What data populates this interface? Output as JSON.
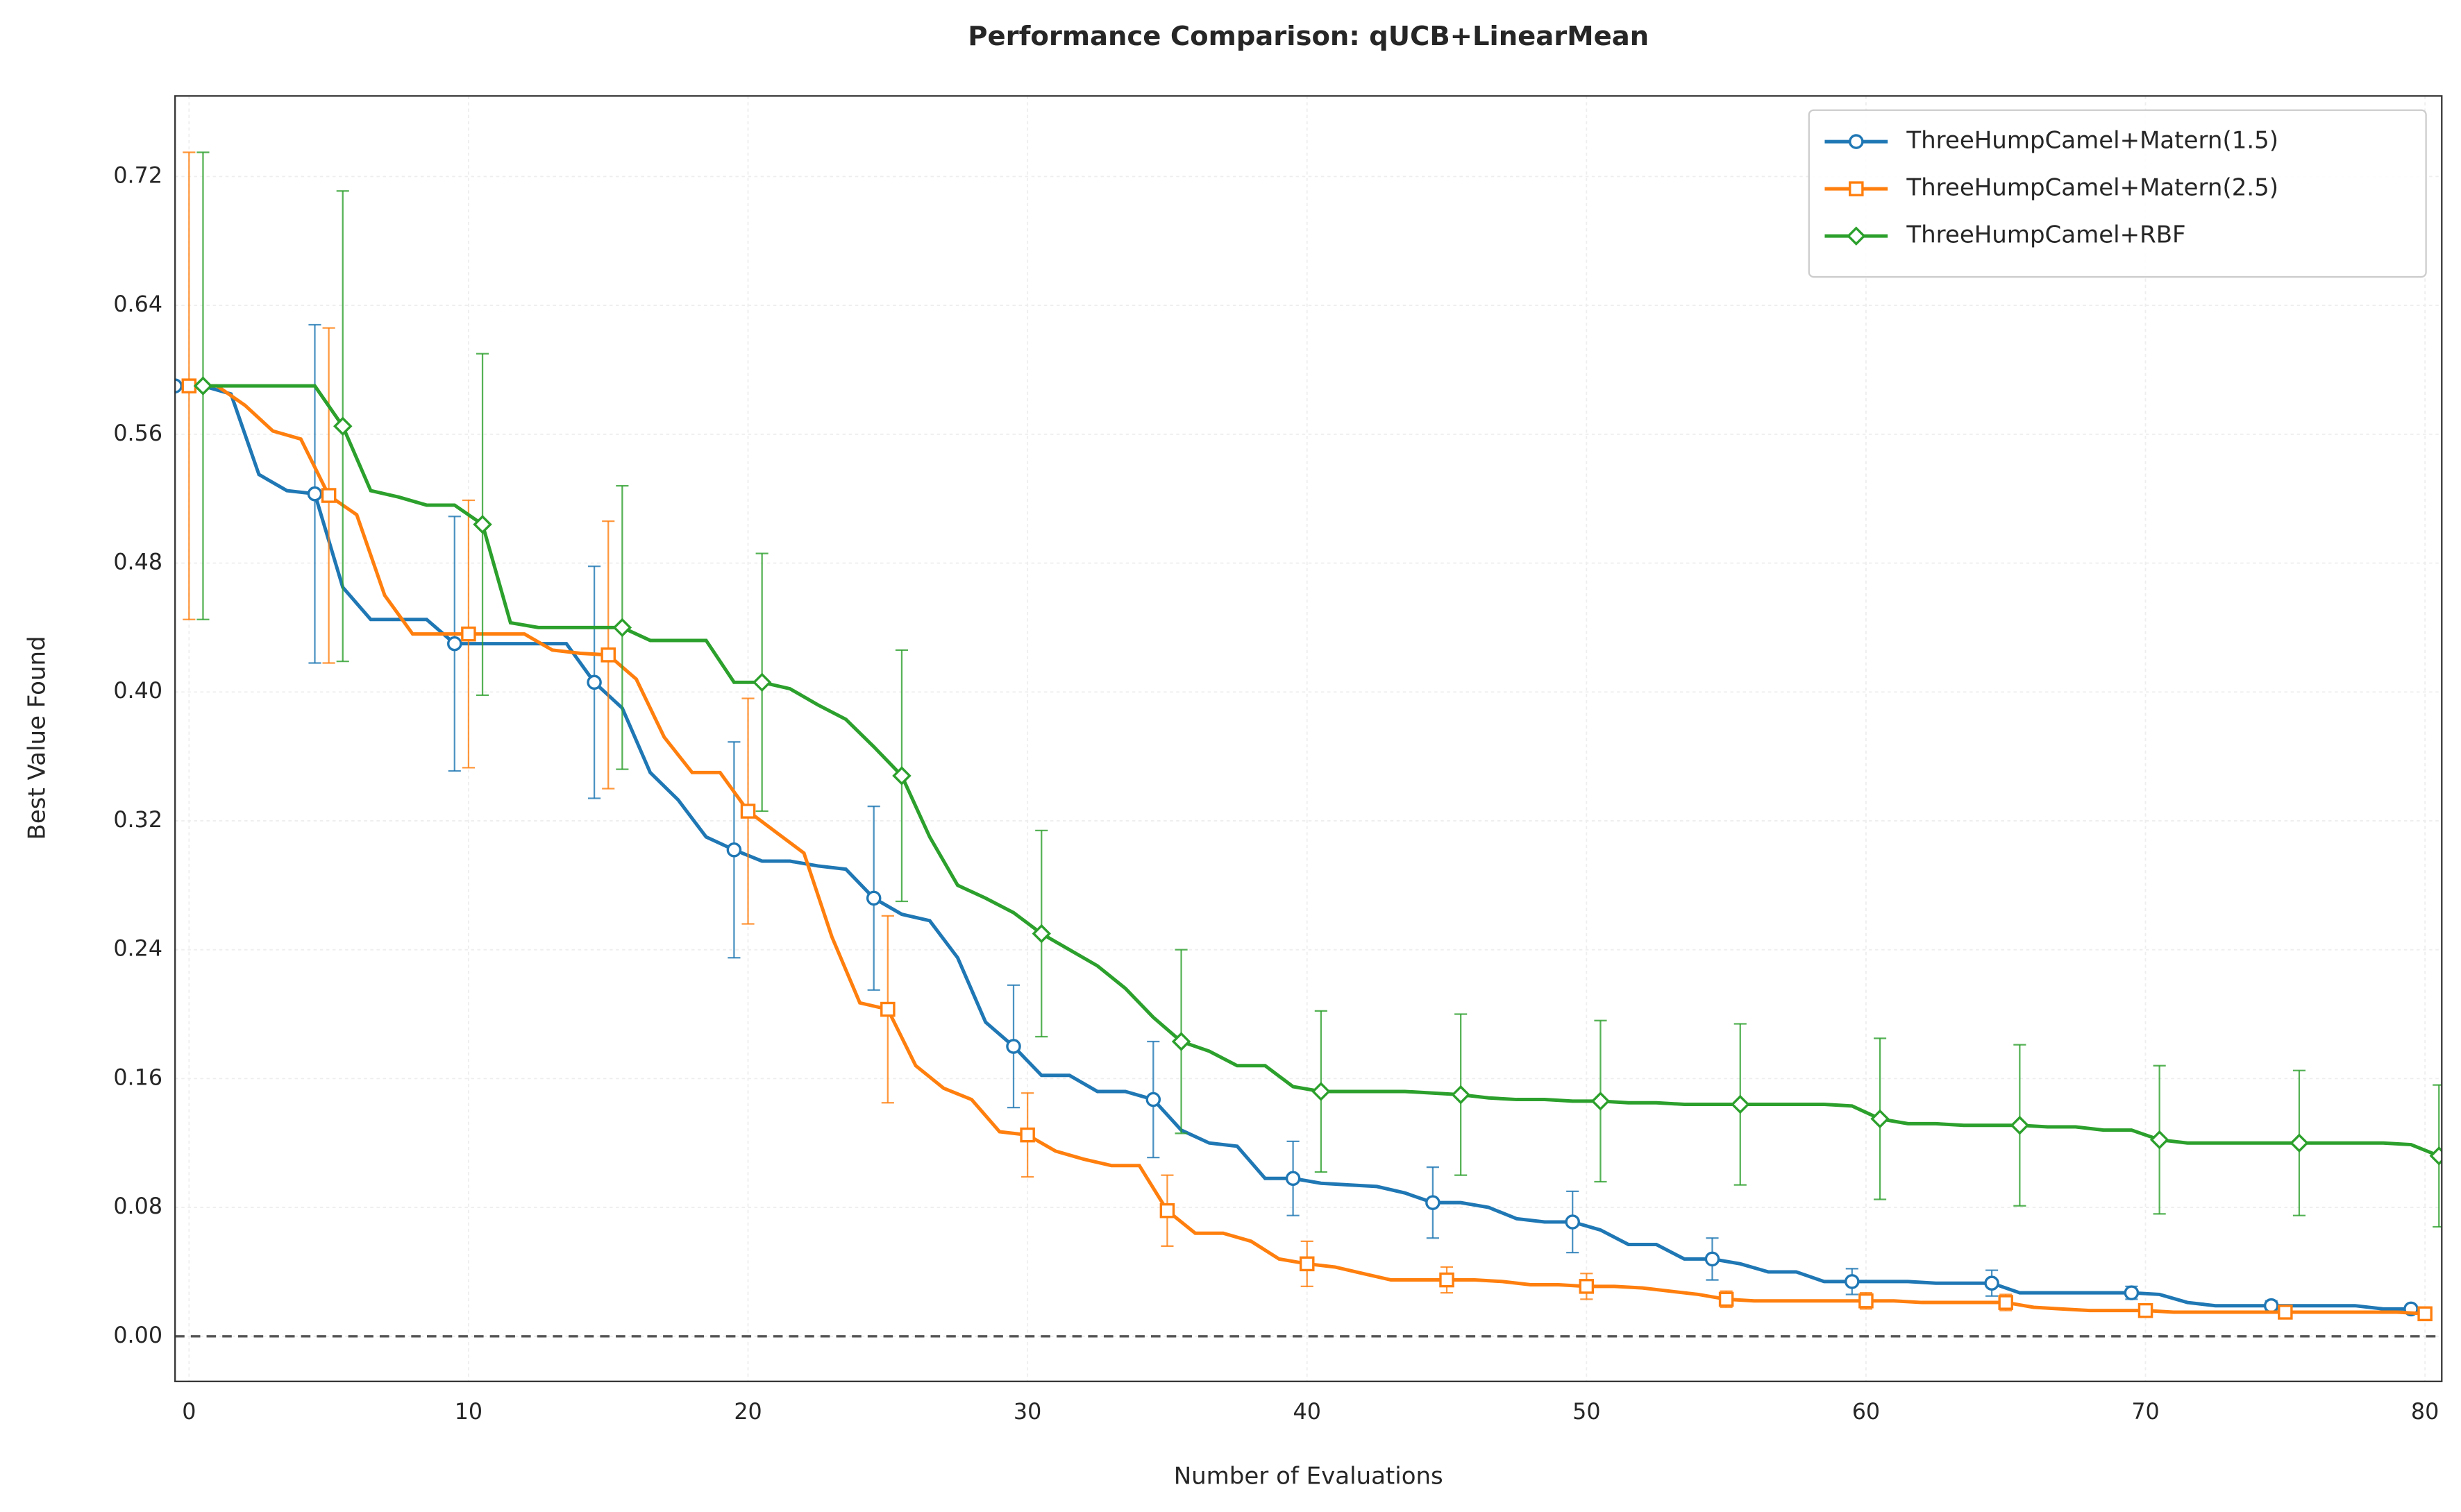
{
  "chart_data": {
    "type": "line",
    "title": "Performance Comparison: qUCB+LinearMean",
    "x_label": "Number of Evaluations",
    "y_label": "Best Value Found",
    "xlim": [
      -0.5,
      80.6
    ],
    "ylim": [
      -0.028,
      0.77
    ],
    "xticks": [
      0,
      10,
      20,
      30,
      40,
      50,
      60,
      70,
      80
    ],
    "yticks": [
      {
        "value": 0,
        "label": "0.00"
      },
      0.08,
      0.16,
      0.24,
      0.32,
      {
        "value": 0.4,
        "label": "0.40"
      },
      0.48,
      0.56,
      0.64,
      0.72
    ],
    "grid": true,
    "legend": "upper right",
    "reference_line": 0,
    "markevery": 5,
    "series": [
      {
        "name": "ThreeHumpCamel+Matern(1.5)",
        "color": "#1f77b4",
        "marker": "circle",
        "x": [
          -0.5,
          0.5,
          1.5,
          2.5,
          3.5,
          4.5,
          5.5,
          6.5,
          7.5,
          8.5,
          9.5,
          10.5,
          11.5,
          12.5,
          13.5,
          14.5,
          15.5,
          16.5,
          17.5,
          18.5,
          19.5,
          20.5,
          21.5,
          22.5,
          23.5,
          24.5,
          25.5,
          26.5,
          27.5,
          28.5,
          29.5,
          30.5,
          31.5,
          32.5,
          33.5,
          34.5,
          35.5,
          36.5,
          37.5,
          38.5,
          39.5,
          40.5,
          41.5,
          42.5,
          43.5,
          44.5,
          45.5,
          46.5,
          47.5,
          48.5,
          49.5,
          50.5,
          51.5,
          52.5,
          53.5,
          54.5,
          55.5,
          56.5,
          57.5,
          58.5,
          59.5,
          60.5,
          61.5,
          62.5,
          63.5,
          64.5,
          65.5,
          66.5,
          67.5,
          68.5,
          69.5,
          70.5,
          71.5,
          72.5,
          73.5,
          74.5,
          75.5,
          76.5,
          77.5,
          78.5,
          79.5
        ],
        "values": [
          0.59,
          0.59,
          0.585,
          0.535,
          0.525,
          0.523,
          0.465,
          0.445,
          0.445,
          0.445,
          0.43,
          0.43,
          0.43,
          0.43,
          0.43,
          0.406,
          0.39,
          0.35,
          0.333,
          0.31,
          0.302,
          0.295,
          0.295,
          0.292,
          0.29,
          0.272,
          0.262,
          0.258,
          0.235,
          0.195,
          0.18,
          0.162,
          0.162,
          0.152,
          0.152,
          0.147,
          0.128,
          0.12,
          0.118,
          0.098,
          0.098,
          0.095,
          0.094,
          0.093,
          0.089,
          0.083,
          0.083,
          0.08,
          0.073,
          0.071,
          0.071,
          0.066,
          0.057,
          0.057,
          0.048,
          0.048,
          0.045,
          0.04,
          0.04,
          0.034,
          0.034,
          0.034,
          0.034,
          0.033,
          0.033,
          0.033,
          0.027,
          0.027,
          0.027,
          0.027,
          0.027,
          0.026,
          0.021,
          0.019,
          0.019,
          0.019,
          0.019,
          0.019,
          0.019,
          0.017,
          0.017
        ],
        "errors": [
          0,
          null,
          null,
          null,
          null,
          0.105,
          null,
          null,
          null,
          null,
          0.079,
          null,
          null,
          null,
          null,
          0.072,
          null,
          null,
          null,
          null,
          0.067,
          null,
          null,
          null,
          null,
          0.057,
          null,
          null,
          null,
          null,
          0.038,
          null,
          null,
          null,
          null,
          0.036,
          null,
          null,
          null,
          null,
          0.023,
          null,
          null,
          null,
          null,
          0.022,
          null,
          null,
          null,
          null,
          0.019,
          null,
          null,
          null,
          null,
          0.013,
          null,
          null,
          null,
          null,
          0.008,
          null,
          null,
          null,
          null,
          0.008,
          null,
          null,
          null,
          null,
          0.004,
          null,
          null,
          null,
          null,
          0.003,
          null,
          null,
          null,
          null,
          0.002
        ]
      },
      {
        "name": "ThreeHumpCamel+Matern(2.5)",
        "color": "#ff7f0e",
        "marker": "square",
        "x": [
          0,
          1,
          2,
          3,
          4,
          5,
          6,
          7,
          8,
          9,
          10,
          11,
          12,
          13,
          14,
          15,
          16,
          17,
          18,
          19,
          20,
          21,
          22,
          23,
          24,
          25,
          26,
          27,
          28,
          29,
          30,
          31,
          32,
          33,
          34,
          35,
          36,
          37,
          38,
          39,
          40,
          41,
          42,
          43,
          44,
          45,
          46,
          47,
          48,
          49,
          50,
          51,
          52,
          53,
          54,
          55,
          56,
          57,
          58,
          59,
          60,
          61,
          62,
          63,
          64,
          65,
          66,
          67,
          68,
          69,
          70,
          71,
          72,
          73,
          74,
          75,
          76,
          77,
          78,
          79,
          80
        ],
        "values": [
          0.59,
          0.59,
          0.578,
          0.562,
          0.557,
          0.522,
          0.51,
          0.46,
          0.436,
          0.436,
          0.436,
          0.436,
          0.436,
          0.426,
          0.424,
          0.423,
          0.408,
          0.372,
          0.35,
          0.35,
          0.326,
          0.313,
          0.3,
          0.248,
          0.207,
          0.203,
          0.168,
          0.154,
          0.147,
          0.127,
          0.125,
          0.115,
          0.11,
          0.106,
          0.106,
          0.078,
          0.064,
          0.064,
          0.059,
          0.048,
          0.045,
          0.043,
          0.039,
          0.035,
          0.035,
          0.035,
          0.035,
          0.034,
          0.032,
          0.032,
          0.031,
          0.031,
          0.03,
          0.028,
          0.026,
          0.023,
          0.022,
          0.022,
          0.022,
          0.022,
          0.022,
          0.022,
          0.021,
          0.021,
          0.021,
          0.021,
          0.018,
          0.017,
          0.016,
          0.016,
          0.016,
          0.015,
          0.015,
          0.015,
          0.015,
          0.015,
          0.015,
          0.015,
          0.015,
          0.015,
          0.014
        ],
        "errors": [
          0.145,
          null,
          null,
          null,
          null,
          0.104,
          null,
          null,
          null,
          null,
          0.083,
          null,
          null,
          null,
          null,
          0.083,
          null,
          null,
          null,
          null,
          0.07,
          null,
          null,
          null,
          null,
          0.058,
          null,
          null,
          null,
          null,
          0.026,
          null,
          null,
          null,
          null,
          0.022,
          null,
          null,
          null,
          null,
          0.014,
          null,
          null,
          null,
          null,
          0.008,
          null,
          null,
          null,
          null,
          0.008,
          null,
          null,
          null,
          null,
          0.005,
          null,
          null,
          null,
          null,
          0.005,
          null,
          null,
          null,
          null,
          0.005,
          null,
          null,
          null,
          null,
          0.003,
          null,
          null,
          null,
          null,
          0.003,
          null,
          null,
          null,
          null,
          0.002
        ]
      },
      {
        "name": "ThreeHumpCamel+RBF",
        "color": "#2ca02c",
        "marker": "diamond",
        "x": [
          0.5,
          1.5,
          2.5,
          3.5,
          4.5,
          5.5,
          6.5,
          7.5,
          8.5,
          9.5,
          10.5,
          11.5,
          12.5,
          13.5,
          14.5,
          15.5,
          16.5,
          17.5,
          18.5,
          19.5,
          20.5,
          21.5,
          22.5,
          23.5,
          24.5,
          25.5,
          26.5,
          27.5,
          28.5,
          29.5,
          30.5,
          31.5,
          32.5,
          33.5,
          34.5,
          35.5,
          36.5,
          37.5,
          38.5,
          39.5,
          40.5,
          41.5,
          42.5,
          43.5,
          44.5,
          45.5,
          46.5,
          47.5,
          48.5,
          49.5,
          50.5,
          51.5,
          52.5,
          53.5,
          54.5,
          55.5,
          56.5,
          57.5,
          58.5,
          59.5,
          60.5,
          61.5,
          62.5,
          63.5,
          64.5,
          65.5,
          66.5,
          67.5,
          68.5,
          69.5,
          70.5,
          71.5,
          72.5,
          73.5,
          74.5,
          75.5,
          76.5,
          77.5,
          78.5,
          79.5,
          80.5
        ],
        "values": [
          0.59,
          0.59,
          0.59,
          0.59,
          0.59,
          0.565,
          0.525,
          0.521,
          0.516,
          0.516,
          0.504,
          0.443,
          0.44,
          0.44,
          0.44,
          0.44,
          0.432,
          0.432,
          0.432,
          0.406,
          0.406,
          0.402,
          0.392,
          0.383,
          0.366,
          0.348,
          0.31,
          0.28,
          0.272,
          0.263,
          0.25,
          0.24,
          0.23,
          0.216,
          0.198,
          0.183,
          0.177,
          0.168,
          0.168,
          0.155,
          0.152,
          0.152,
          0.152,
          0.152,
          0.151,
          0.15,
          0.148,
          0.147,
          0.147,
          0.146,
          0.146,
          0.145,
          0.145,
          0.144,
          0.144,
          0.144,
          0.144,
          0.144,
          0.144,
          0.143,
          0.135,
          0.132,
          0.132,
          0.131,
          0.131,
          0.131,
          0.13,
          0.13,
          0.128,
          0.128,
          0.122,
          0.12,
          0.12,
          0.12,
          0.12,
          0.12,
          0.12,
          0.12,
          0.12,
          0.119,
          0.112
        ],
        "errors": [
          0.145,
          null,
          null,
          null,
          null,
          0.146,
          null,
          null,
          null,
          null,
          0.106,
          null,
          null,
          null,
          null,
          0.088,
          null,
          null,
          null,
          null,
          0.08,
          null,
          null,
          null,
          null,
          0.078,
          null,
          null,
          null,
          null,
          0.064,
          null,
          null,
          null,
          null,
          0.057,
          null,
          null,
          null,
          null,
          0.05,
          null,
          null,
          null,
          null,
          0.05,
          null,
          null,
          null,
          null,
          0.05,
          null,
          null,
          null,
          null,
          0.05,
          null,
          null,
          null,
          null,
          0.05,
          null,
          null,
          null,
          null,
          0.05,
          null,
          null,
          null,
          null,
          0.046,
          null,
          null,
          null,
          null,
          0.045,
          null,
          null,
          null,
          null,
          0.044
        ]
      }
    ]
  }
}
